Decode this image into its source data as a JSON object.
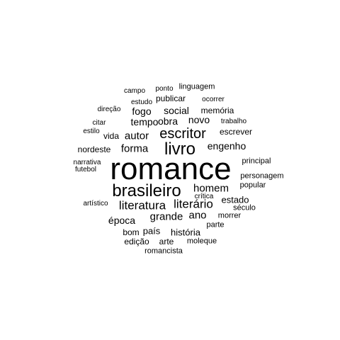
{
  "cloud": {
    "text_color": "#000000",
    "background": "#ffffff",
    "words": [
      {
        "text": "romance",
        "weight": 1.0
      },
      {
        "text": "brasileiro",
        "weight": 0.55
      },
      {
        "text": "livro",
        "weight": 0.55
      },
      {
        "text": "escritor",
        "weight": 0.42
      },
      {
        "text": "literatura",
        "weight": 0.37
      },
      {
        "text": "literário",
        "weight": 0.37
      },
      {
        "text": "homem",
        "weight": 0.31
      },
      {
        "text": "engenho",
        "weight": 0.3
      },
      {
        "text": "forma",
        "weight": 0.3
      },
      {
        "text": "autor",
        "weight": 0.3
      },
      {
        "text": "grande",
        "weight": 0.29
      },
      {
        "text": "ano",
        "weight": 0.29
      },
      {
        "text": "obra",
        "weight": 0.27
      },
      {
        "text": "novo",
        "weight": 0.27
      },
      {
        "text": "social",
        "weight": 0.27
      },
      {
        "text": "fogo",
        "weight": 0.27
      },
      {
        "text": "tempo",
        "weight": 0.26
      },
      {
        "text": "época",
        "weight": 0.25
      },
      {
        "text": "estado",
        "weight": 0.25
      },
      {
        "text": "nordeste",
        "weight": 0.24
      },
      {
        "text": "história",
        "weight": 0.24
      },
      {
        "text": "país",
        "weight": 0.24
      },
      {
        "text": "escrever",
        "weight": 0.23
      },
      {
        "text": "vida",
        "weight": 0.23
      },
      {
        "text": "publicar",
        "weight": 0.23
      },
      {
        "text": "memória",
        "weight": 0.23
      },
      {
        "text": "edição",
        "weight": 0.22
      },
      {
        "text": "arte",
        "weight": 0.22
      },
      {
        "text": "bom",
        "weight": 0.22
      },
      {
        "text": "morrer",
        "weight": 0.21
      },
      {
        "text": "moleque",
        "weight": 0.21
      },
      {
        "text": "romancista",
        "weight": 0.21
      },
      {
        "text": "parte",
        "weight": 0.2
      },
      {
        "text": "século",
        "weight": 0.2
      },
      {
        "text": "popular",
        "weight": 0.2
      },
      {
        "text": "personagem",
        "weight": 0.2
      },
      {
        "text": "principal",
        "weight": 0.2
      },
      {
        "text": "linguagem",
        "weight": 0.2
      },
      {
        "text": "ocorrer",
        "weight": 0.2
      },
      {
        "text": "estudo",
        "weight": 0.2
      },
      {
        "text": "trabalho",
        "weight": 0.19
      },
      {
        "text": "ponto",
        "weight": 0.19
      },
      {
        "text": "campo",
        "weight": 0.19
      },
      {
        "text": "direção",
        "weight": 0.19
      },
      {
        "text": "citar",
        "weight": 0.19
      },
      {
        "text": "estilo",
        "weight": 0.18
      },
      {
        "text": "narrativa",
        "weight": 0.18
      },
      {
        "text": "futebol",
        "weight": 0.18
      },
      {
        "text": "artístico",
        "weight": 0.18
      },
      {
        "text": "crítica",
        "weight": 0.18
      }
    ]
  }
}
